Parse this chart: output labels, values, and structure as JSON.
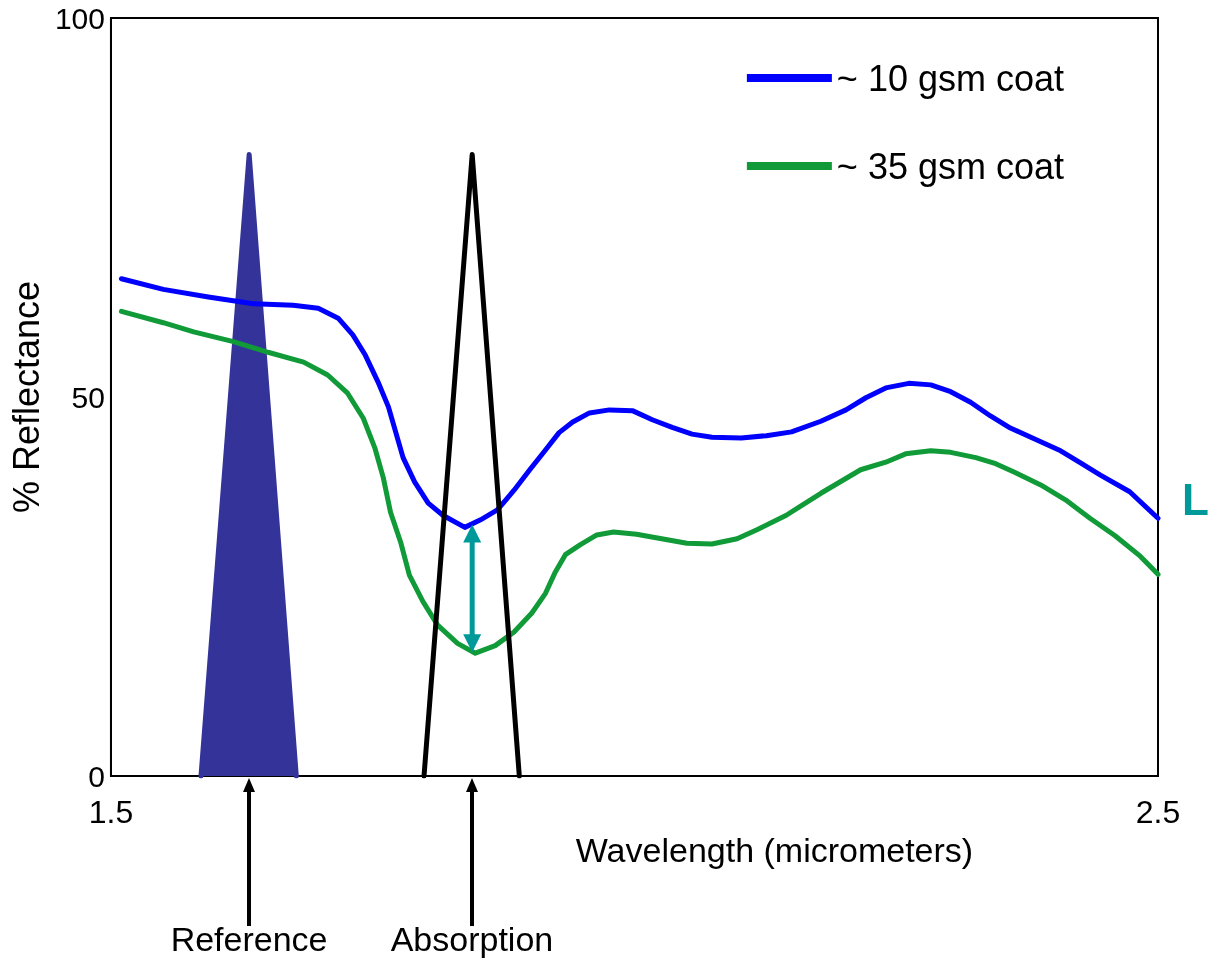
{
  "chart_data": {
    "type": "line",
    "xlabel": "Wavelength (micrometers)",
    "ylabel": "% Reflectance",
    "xlim": [
      1.5,
      2.5
    ],
    "xticks": [
      1.5,
      2.5
    ],
    "ylim": [
      0,
      100
    ],
    "yticks": [
      0,
      50,
      100
    ],
    "grid": false,
    "legend": "top right",
    "marker": "none",
    "line_style": "solid",
    "series": [
      {
        "name": "~ 10 gsm coat",
        "color": "#0000ff",
        "x": [
          1.51,
          1.55,
          1.593,
          1.636,
          1.674,
          1.698,
          1.717,
          1.731,
          1.743,
          1.755,
          1.765,
          1.779,
          1.79,
          1.803,
          1.817,
          1.838,
          1.853,
          1.869,
          1.885,
          1.9,
          1.915,
          1.928,
          1.941,
          1.957,
          1.976,
          1.998,
          2.017,
          2.036,
          2.055,
          2.074,
          2.102,
          2.126,
          2.15,
          2.178,
          2.202,
          2.221,
          2.24,
          2.262,
          2.283,
          2.302,
          2.321,
          2.34,
          2.359,
          2.388,
          2.407,
          2.426,
          2.445,
          2.473,
          2.5
        ],
        "values": [
          65.6,
          64.2,
          63.2,
          62.3,
          62.1,
          61.7,
          60.4,
          58.2,
          55.5,
          52.0,
          48.7,
          42.0,
          38.8,
          36.0,
          34.4,
          32.8,
          33.8,
          35.1,
          37.7,
          40.4,
          43.0,
          45.3,
          46.7,
          47.9,
          48.3,
          48.2,
          47.0,
          46.0,
          45.1,
          44.7,
          44.6,
          44.9,
          45.4,
          46.8,
          48.3,
          49.9,
          51.2,
          51.8,
          51.6,
          50.7,
          49.3,
          47.5,
          45.9,
          44.1,
          42.9,
          41.3,
          39.7,
          37.5,
          34.0
        ]
      },
      {
        "name": "~ 35 gsm coat",
        "color": "#109a38",
        "x": [
          1.51,
          1.55,
          1.579,
          1.617,
          1.65,
          1.684,
          1.707,
          1.726,
          1.741,
          1.752,
          1.76,
          1.767,
          1.777,
          1.785,
          1.798,
          1.812,
          1.831,
          1.848,
          1.867,
          1.885,
          1.902,
          1.915,
          1.924,
          1.934,
          1.948,
          1.964,
          1.98,
          2.002,
          2.026,
          2.05,
          2.074,
          2.098,
          2.117,
          2.145,
          2.178,
          2.216,
          2.24,
          2.259,
          2.283,
          2.302,
          2.326,
          2.345,
          2.364,
          2.388,
          2.412,
          2.435,
          2.459,
          2.483,
          2.5
        ],
        "values": [
          61.3,
          59.8,
          58.6,
          57.3,
          55.9,
          54.6,
          52.9,
          50.5,
          47.2,
          43.3,
          39.4,
          34.8,
          30.7,
          26.5,
          23.0,
          19.9,
          17.5,
          16.2,
          17.2,
          19.0,
          21.5,
          24.1,
          26.8,
          29.2,
          30.5,
          31.8,
          32.2,
          31.9,
          31.3,
          30.7,
          30.6,
          31.3,
          32.5,
          34.4,
          37.3,
          40.4,
          41.4,
          42.5,
          42.9,
          42.7,
          42.0,
          41.2,
          40.0,
          38.4,
          36.4,
          34.0,
          31.7,
          29.0,
          26.6
        ]
      },
      {
        "type": "area",
        "color": "#333399",
        "x": [
          1.586,
          1.632,
          1.677
        ],
        "values": [
          0,
          82,
          0
        ]
      },
      {
        "type": "line",
        "color": "#000000",
        "x": [
          1.799,
          1.845,
          1.89
        ],
        "values": [
          0,
          82,
          0
        ]
      },
      {
        "type": "line",
        "color": "#009999",
        "marker": "triangle",
        "x": [
          1.845,
          1.845
        ],
        "values": [
          32,
          17.5
        ]
      }
    ],
    "annotations": [
      "Reference",
      "Absorption",
      "L"
    ]
  }
}
